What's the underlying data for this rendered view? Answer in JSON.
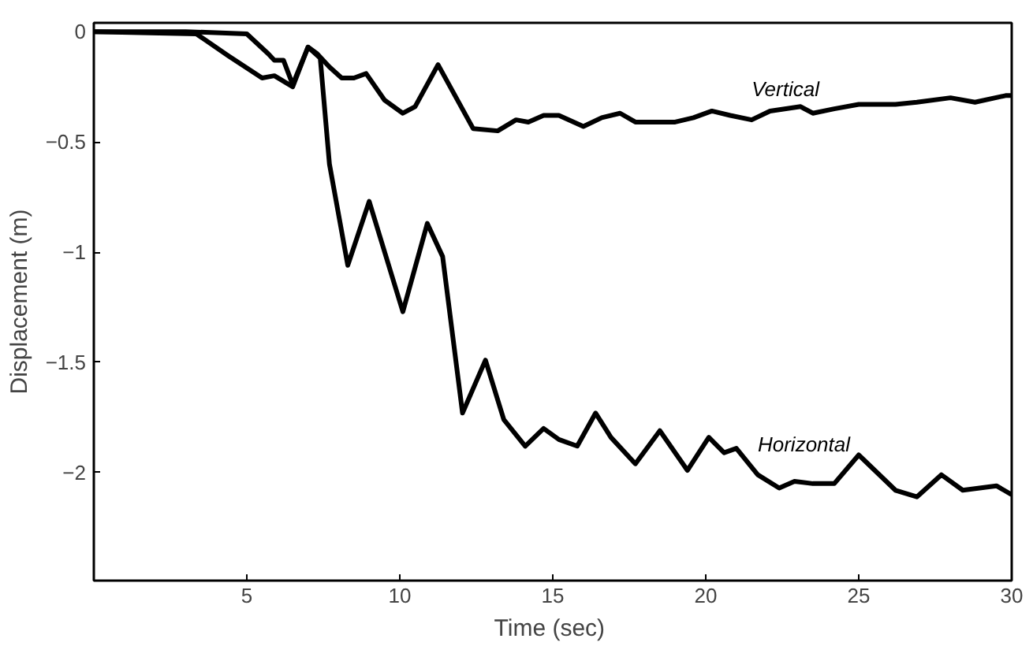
{
  "chart_data": {
    "type": "line",
    "xlabel": "Time  (sec)",
    "ylabel": "Displacement (m)",
    "xlim": [
      0,
      30
    ],
    "ylim": [
      -2.49,
      0.04
    ],
    "xticks": [
      5,
      10,
      15,
      20,
      25,
      30
    ],
    "yticks": [
      0,
      -0.5,
      -1,
      -1.5,
      -2
    ],
    "grid": false,
    "legend": false,
    "marker": "none",
    "line_style": "solid",
    "series": [
      {
        "name": "Vertical",
        "color": "#000000",
        "x": [
          0,
          3,
          5.0,
          5.7,
          5.9,
          6.2,
          6.5,
          7.0,
          7.3,
          7.7,
          8.1,
          8.5,
          8.9,
          9.5,
          10.1,
          10.5,
          11.25,
          12.4,
          13.2,
          13.8,
          14.2,
          14.7,
          15.2,
          16.0,
          16.6,
          17.2,
          17.7,
          19.0,
          19.6,
          20.2,
          20.8,
          21.5,
          22.1,
          23.1,
          23.5,
          24.2,
          25.0,
          26.2,
          26.9,
          28.0,
          28.8,
          29.8,
          30
        ],
        "values": [
          0,
          0,
          -0.01,
          -0.1,
          -0.13,
          -0.13,
          -0.24,
          -0.07,
          -0.1,
          -0.16,
          -0.21,
          -0.21,
          -0.19,
          -0.31,
          -0.37,
          -0.34,
          -0.15,
          -0.44,
          -0.45,
          -0.4,
          -0.41,
          -0.38,
          -0.38,
          -0.43,
          -0.39,
          -0.37,
          -0.41,
          -0.41,
          -0.39,
          -0.36,
          -0.38,
          -0.4,
          -0.36,
          -0.34,
          -0.37,
          -0.35,
          -0.33,
          -0.33,
          -0.32,
          -0.3,
          -0.32,
          -0.29,
          -0.29
        ]
      },
      {
        "name": "Horizontal",
        "color": "#000000",
        "x": [
          0,
          3.35,
          4.4,
          5.5,
          5.9,
          6.5,
          7.0,
          7.4,
          7.7,
          8.3,
          9.0,
          10.1,
          10.9,
          11.4,
          12.05,
          12.8,
          13.4,
          14.1,
          14.7,
          15.2,
          15.8,
          16.4,
          16.9,
          17.7,
          18.5,
          19.4,
          20.1,
          20.6,
          21.0,
          21.7,
          22.4,
          22.9,
          23.5,
          24.2,
          25.0,
          26.2,
          26.9,
          27.7,
          28.4,
          29.5,
          30
        ],
        "values": [
          0,
          -0.01,
          -0.11,
          -0.21,
          -0.2,
          -0.25,
          -0.07,
          -0.12,
          -0.6,
          -1.06,
          -0.77,
          -1.27,
          -0.87,
          -1.02,
          -1.73,
          -1.49,
          -1.76,
          -1.88,
          -1.8,
          -1.85,
          -1.88,
          -1.73,
          -1.84,
          -1.96,
          -1.81,
          -1.99,
          -1.84,
          -1.91,
          -1.89,
          -2.01,
          -2.07,
          -2.04,
          -2.05,
          -2.05,
          -1.92,
          -2.08,
          -2.11,
          -2.01,
          -2.08,
          -2.06,
          -2.1
        ]
      }
    ]
  }
}
